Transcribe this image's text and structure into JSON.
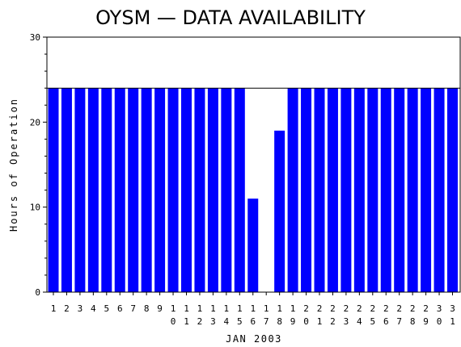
{
  "chart_data": {
    "type": "bar",
    "title": "OYSM — DATA AVAILABILITY",
    "xlabel": "JAN 2003",
    "ylabel": "Hours of Operation",
    "categories": [
      "1",
      "2",
      "3",
      "4",
      "5",
      "6",
      "7",
      "8",
      "9",
      "10",
      "11",
      "12",
      "13",
      "14",
      "15",
      "16",
      "17",
      "18",
      "19",
      "20",
      "21",
      "22",
      "23",
      "24",
      "25",
      "26",
      "27",
      "28",
      "29",
      "30",
      "31"
    ],
    "values": [
      24,
      24,
      24,
      24,
      24,
      24,
      24,
      24,
      24,
      24,
      24,
      24,
      24,
      24,
      24,
      11,
      0,
      19,
      24,
      24,
      24,
      24,
      24,
      24,
      24,
      24,
      24,
      24,
      24,
      24,
      24
    ],
    "ylim": [
      0,
      30
    ],
    "yticks": [
      0,
      10,
      20,
      30
    ],
    "max_line": 24,
    "grid": false,
    "bar_color": "#0000ff"
  }
}
